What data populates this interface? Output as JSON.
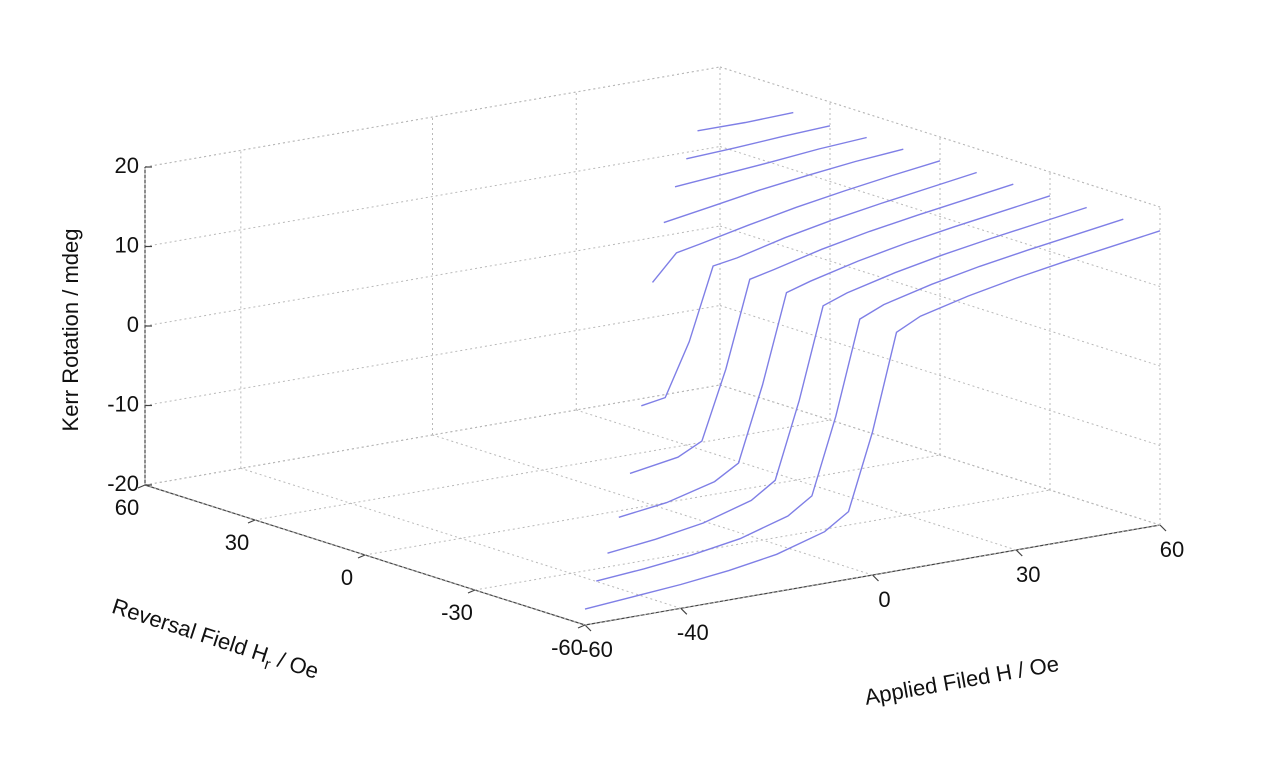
{
  "chart_data": {
    "type": "line3d",
    "zlabel": "Kerr Rotation / mdeg",
    "ylabel": {
      "text": "Reversal Field H",
      "sub": "r",
      "unit": " / Oe"
    },
    "xlabel": "Applied Filed H / Oe",
    "xlim": [
      -60,
      60
    ],
    "xticks": [
      -60,
      -40,
      0,
      30,
      60
    ],
    "ylim": [
      -60,
      60
    ],
    "yticks": [
      60,
      30,
      0,
      -30,
      -60
    ],
    "zlim": [
      -20,
      20
    ],
    "zticks": [
      -20,
      -10,
      0,
      10,
      20
    ],
    "grid": true,
    "color": "#7f7fe6",
    "x": [
      -60,
      -50,
      -40,
      -30,
      -20,
      -10,
      -5,
      0,
      5,
      10,
      20,
      30,
      40,
      50,
      60
    ],
    "series": [
      {
        "hr": -60,
        "values": [
          -18,
          -17.5,
          -17,
          -16.3,
          -15.3,
          -13.5,
          -11.5,
          -2,
          10,
          11.5,
          13,
          14.2,
          15.2,
          16.1,
          17
        ]
      },
      {
        "hr": -50,
        "values": [
          null,
          -17,
          -16.5,
          -15.8,
          -14.8,
          -13,
          -11,
          -1.5,
          10.2,
          11.5,
          13,
          14.2,
          15.2,
          16.1,
          17
        ]
      },
      {
        "hr": -40,
        "values": [
          null,
          null,
          -16,
          -15.3,
          -14.3,
          -12.5,
          -10.5,
          -1,
          10.4,
          11.5,
          13,
          14.2,
          15.2,
          16.1,
          17
        ]
      },
      {
        "hr": -30,
        "values": [
          null,
          null,
          null,
          -14,
          -13.2,
          -11.6,
          -9.8,
          -0.5,
          10.6,
          11.5,
          13,
          14.2,
          15.2,
          16.1,
          17
        ]
      },
      {
        "hr": -20,
        "values": [
          null,
          null,
          null,
          null,
          -11,
          -10,
          -8.5,
          0,
          10.8,
          11.5,
          13,
          14.2,
          15.2,
          16.1,
          17
        ]
      },
      {
        "hr": -10,
        "values": [
          null,
          null,
          null,
          null,
          null,
          -5,
          -4.5,
          2,
          11,
          11.5,
          13,
          14.2,
          15.2,
          16.1,
          17
        ]
      },
      {
        "hr": 0,
        "values": [
          null,
          null,
          null,
          null,
          null,
          null,
          null,
          8,
          11.2,
          11.8,
          13.1,
          14.3,
          15.3,
          16.2,
          17
        ]
      },
      {
        "hr": 10,
        "values": [
          null,
          null,
          null,
          null,
          null,
          null,
          null,
          null,
          null,
          13,
          14,
          15,
          15.8,
          16.5,
          17
        ]
      },
      {
        "hr": 20,
        "values": [
          null,
          null,
          null,
          null,
          null,
          null,
          null,
          null,
          null,
          null,
          15,
          15.5,
          16,
          16.6,
          17
        ]
      },
      {
        "hr": 30,
        "values": [
          null,
          null,
          null,
          null,
          null,
          null,
          null,
          null,
          null,
          null,
          null,
          16,
          16.3,
          16.7,
          17
        ]
      },
      {
        "hr": 40,
        "values": [
          null,
          null,
          null,
          null,
          null,
          null,
          null,
          null,
          null,
          null,
          null,
          null,
          17,
          17,
          17.2
        ]
      }
    ]
  }
}
